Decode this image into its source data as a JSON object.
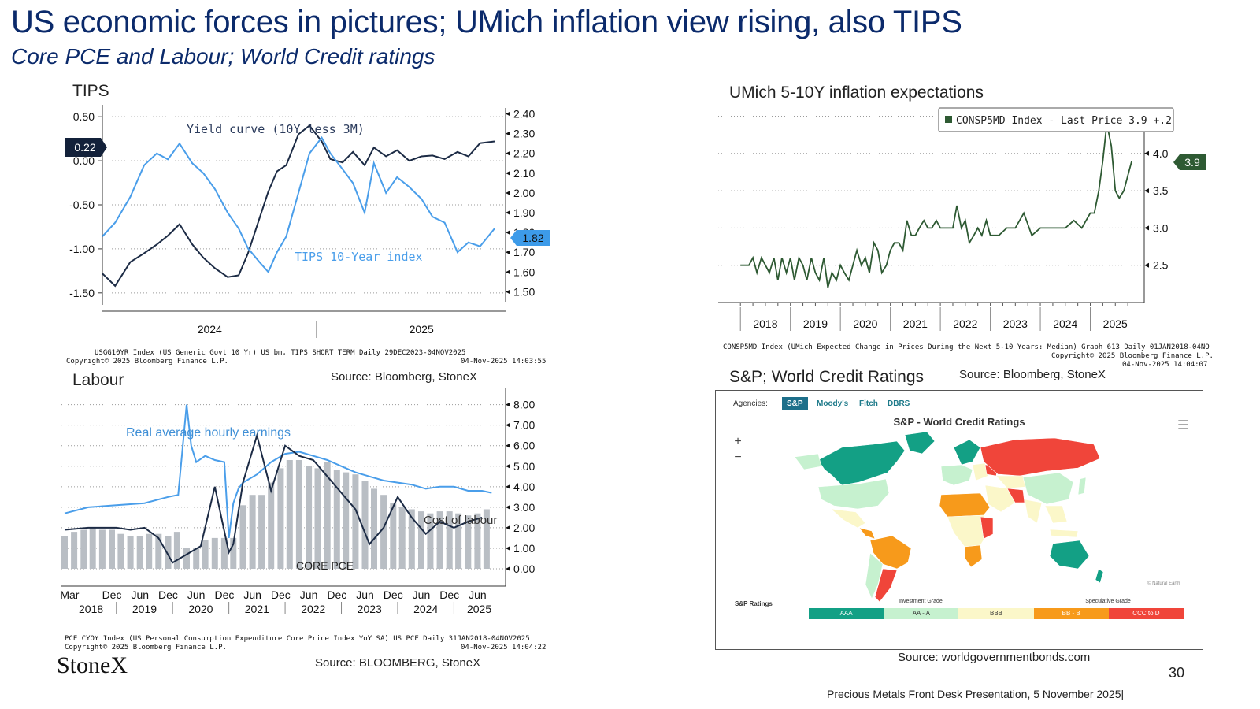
{
  "header": {
    "title": "US  economic forces in pictures; UMich inflation view rising, also TIPS",
    "subtitle": "Core PCE and Labour; World Credit ratings"
  },
  "tips": {
    "panel_title": "TIPS",
    "annotation_curve": "Yield curve (10Y less 3M)",
    "annotation_tips": "TIPS 10-Year index",
    "left_last": "0.22",
    "right_last": "1.82",
    "footnote1": "USGG10YR Index (US Generic Govt 10 Yr) US bm, TIPS SHORT TERM Daily 29DEC2023-04NOV2025",
    "footnote2": "Copyright© 2025 Bloomberg Finance L.P.",
    "footnote3": "04-Nov-2025 14:03:55",
    "source": "Source: Bloomberg, StoneX"
  },
  "umich": {
    "panel_title": "UMich 5-10Y inflation expectations",
    "legend": "CONSP5MD Index - Last Price 3.9  +.2",
    "last": "3.9",
    "footnote1": "CONSP5MD Index (UMich Expected Change in Prices During the Next 5-10 Years: Median) Graph 613 Daily 01JAN2018-04NO",
    "footnote2": "Copyright© 2025 Bloomberg Finance L.P.",
    "footnote3": "04-Nov-2025 14:04:07",
    "source": "Source: Bloomberg, StoneX"
  },
  "labour": {
    "panel_title": "Labour",
    "annotation_wages": "Real average hourly earnings",
    "annotation_cost": "Cost of labour",
    "annotation_pce": "CORE PCE",
    "footnote1": "PCE CYOY Index (US Personal Consumption Expenditure Core Price Index YoY SA) US PCE Daily 31JAN2018-04NOV2025",
    "footnote2": "Copyright© 2025 Bloomberg Finance L.P.",
    "footnote3": "04-Nov-2025 14:04:22",
    "source": "Source: BLOOMBERG, StoneX"
  },
  "credit": {
    "panel_title": "S&P; World Credit Ratings",
    "panel_source": "Source: Bloomberg, StoneX",
    "agencies_label": "Agencies:",
    "agencies": [
      "S&P",
      "Moody's",
      "Fitch",
      "DBRS"
    ],
    "map_title": "S&P - World Credit Ratings",
    "zoom_in": "+",
    "zoom_out": "−",
    "attribution": "© Natural Earth",
    "legend_label": "S&P Ratings",
    "investment_grade": "Investment Grade",
    "speculative_grade": "Speculative Grade",
    "legend_bins": [
      {
        "label": "AAA",
        "color": "#13a085"
      },
      {
        "label": "AA - A",
        "color": "#c6f1cf"
      },
      {
        "label": "BBB",
        "color": "#fbf7c9"
      },
      {
        "label": "BB - B",
        "color": "#f79a1b"
      },
      {
        "label": "CCC to D",
        "color": "#f0453a"
      }
    ],
    "source": "Source: worldgovernmentbonds.com"
  },
  "brand": {
    "logo": "StoneX",
    "page_number": "30",
    "footer": "Precious Metals Front Desk Presentation, 5 November 2025|"
  },
  "chart_data": [
    {
      "type": "line",
      "title": "TIPS",
      "x_labels": [
        "2024",
        "2025"
      ],
      "x_range": [
        "2023-12-29",
        "2025-11-04"
      ],
      "left_axis": {
        "ticks": [
          "0.50",
          "0.00",
          "-0.50",
          "-1.00",
          "-1.50"
        ],
        "ylim": [
          -1.6,
          0.6
        ]
      },
      "right_axis": {
        "ticks": [
          "2.40",
          "2.30",
          "2.20",
          "2.10",
          "2.00",
          "1.90",
          "1.80",
          "1.70",
          "1.60",
          "1.50"
        ],
        "ylim": [
          1.45,
          2.43
        ]
      },
      "series": [
        {
          "name": "Yield curve (10Y less 3M)",
          "axis": "left",
          "color": "#1c2b45",
          "x": [
            "2023-12-29",
            "2024-01-20",
            "2024-02-15",
            "2024-03-10",
            "2024-04-01",
            "2024-04-20",
            "2024-05-10",
            "2024-06-01",
            "2024-06-20",
            "2024-07-10",
            "2024-08-01",
            "2024-08-20",
            "2024-09-05",
            "2024-09-25",
            "2024-10-10",
            "2024-10-25",
            "2024-11-10",
            "2024-12-01",
            "2024-12-20",
            "2025-01-10",
            "2025-01-25",
            "2025-02-15",
            "2025-03-05",
            "2025-03-25",
            "2025-04-10",
            "2025-05-01",
            "2025-05-20",
            "2025-06-10",
            "2025-07-01",
            "2025-07-20",
            "2025-08-10",
            "2025-09-01",
            "2025-09-20",
            "2025-10-10",
            "2025-11-04"
          ],
          "y": [
            -1.28,
            -1.42,
            -1.15,
            -1.05,
            -0.95,
            -0.85,
            -0.72,
            -0.95,
            -1.1,
            -1.22,
            -1.32,
            -1.3,
            -1.05,
            -0.65,
            -0.35,
            -0.12,
            -0.05,
            0.3,
            0.4,
            0.22,
            0.02,
            -0.02,
            0.1,
            -0.05,
            0.15,
            0.05,
            0.12,
            0.0,
            0.05,
            0.06,
            0.02,
            0.1,
            0.05,
            0.2,
            0.22
          ]
        },
        {
          "name": "TIPS 10-Year index",
          "axis": "right",
          "color": "#4a9eea",
          "x": [
            "2023-12-29",
            "2024-01-20",
            "2024-02-15",
            "2024-03-10",
            "2024-04-01",
            "2024-04-20",
            "2024-05-10",
            "2024-06-01",
            "2024-06-20",
            "2024-07-10",
            "2024-08-01",
            "2024-08-20",
            "2024-09-05",
            "2024-09-25",
            "2024-10-10",
            "2024-10-25",
            "2024-11-10",
            "2024-12-01",
            "2024-12-20",
            "2025-01-10",
            "2025-01-25",
            "2025-02-15",
            "2025-03-05",
            "2025-03-25",
            "2025-04-10",
            "2025-05-01",
            "2025-05-20",
            "2025-06-10",
            "2025-07-01",
            "2025-07-20",
            "2025-08-10",
            "2025-09-01",
            "2025-09-20",
            "2025-10-10",
            "2025-11-04"
          ],
          "y": [
            1.78,
            1.85,
            1.98,
            2.14,
            2.2,
            2.17,
            2.25,
            2.15,
            2.1,
            2.02,
            1.9,
            1.82,
            1.72,
            1.65,
            1.6,
            1.7,
            1.78,
            2.0,
            2.2,
            2.28,
            2.2,
            2.12,
            2.05,
            1.9,
            2.15,
            2.0,
            2.08,
            2.03,
            1.97,
            1.88,
            1.85,
            1.7,
            1.75,
            1.73,
            1.82
          ]
        }
      ]
    },
    {
      "type": "line",
      "title": "UMich 5-10Y inflation expectations",
      "x_labels": [
        "2018",
        "2019",
        "2020",
        "2021",
        "2022",
        "2023",
        "2024",
        "2025"
      ],
      "y_ticks": [
        "4.5",
        "4.0",
        "3.5",
        "3.0",
        "2.5"
      ],
      "ylim": [
        2.0,
        4.6
      ],
      "series": [
        {
          "name": "CONSP5MD Index",
          "color": "#2e5a33",
          "x": [
            2018.0,
            2018.08,
            2018.17,
            2018.25,
            2018.33,
            2018.42,
            2018.5,
            2018.58,
            2018.67,
            2018.75,
            2018.83,
            2018.92,
            2019.0,
            2019.08,
            2019.17,
            2019.25,
            2019.33,
            2019.42,
            2019.5,
            2019.58,
            2019.67,
            2019.75,
            2019.83,
            2019.92,
            2020.0,
            2020.08,
            2020.17,
            2020.25,
            2020.33,
            2020.42,
            2020.5,
            2020.58,
            2020.67,
            2020.75,
            2020.83,
            2020.92,
            2021.0,
            2021.08,
            2021.17,
            2021.25,
            2021.33,
            2021.42,
            2021.5,
            2021.58,
            2021.67,
            2021.75,
            2021.83,
            2021.92,
            2022.0,
            2022.08,
            2022.17,
            2022.25,
            2022.33,
            2022.42,
            2022.5,
            2022.58,
            2022.67,
            2022.75,
            2022.83,
            2022.92,
            2023.0,
            2023.17,
            2023.33,
            2023.5,
            2023.67,
            2023.83,
            2024.0,
            2024.17,
            2024.33,
            2024.5,
            2024.67,
            2024.83,
            2025.0,
            2025.08,
            2025.17,
            2025.25,
            2025.33,
            2025.42,
            2025.5,
            2025.58,
            2025.67,
            2025.75,
            2025.83
          ],
          "y": [
            2.5,
            2.5,
            2.5,
            2.6,
            2.4,
            2.6,
            2.5,
            2.4,
            2.6,
            2.3,
            2.6,
            2.4,
            2.6,
            2.3,
            2.6,
            2.5,
            2.3,
            2.6,
            2.4,
            2.3,
            2.6,
            2.2,
            2.4,
            2.3,
            2.5,
            2.4,
            2.3,
            2.5,
            2.7,
            2.5,
            2.6,
            2.4,
            2.8,
            2.7,
            2.4,
            2.5,
            2.7,
            2.8,
            2.8,
            2.7,
            3.1,
            2.9,
            2.9,
            3.0,
            3.1,
            3.0,
            3.0,
            3.1,
            3.0,
            3.0,
            3.0,
            3.0,
            3.3,
            3.0,
            3.1,
            2.8,
            2.9,
            3.0,
            2.9,
            3.1,
            2.9,
            2.9,
            3.0,
            3.0,
            3.2,
            2.9,
            3.0,
            3.0,
            3.0,
            3.0,
            3.1,
            3.0,
            3.2,
            3.2,
            3.5,
            3.9,
            4.4,
            4.1,
            3.5,
            3.4,
            3.5,
            3.7,
            3.9
          ]
        }
      ]
    },
    {
      "type": "bar",
      "title": "Labour",
      "x_labels": [
        "Mar",
        "Dec",
        "Jun",
        "Dec",
        "Jun",
        "Dec",
        "Jun",
        "Dec",
        "Jun",
        "Dec",
        "Jun",
        "Dec",
        "Jun",
        "Dec",
        "Jun"
      ],
      "year_labels": [
        "2018",
        "2019",
        "2020",
        "2021",
        "2022",
        "2023",
        "2024",
        "2025"
      ],
      "y_ticks": [
        "8.00",
        "7.00",
        "6.00",
        "5.00",
        "4.00",
        "3.00",
        "2.00",
        "1.00",
        "0.00"
      ],
      "ylim": [
        0,
        8.6
      ],
      "x_range": [
        2018.08,
        2025.75
      ],
      "series": [
        {
          "name": "CORE PCE",
          "kind": "bar",
          "color": "#b9bec4",
          "x": [
            2018.08,
            2018.25,
            2018.42,
            2018.58,
            2018.75,
            2018.92,
            2019.08,
            2019.25,
            2019.42,
            2019.58,
            2019.75,
            2019.92,
            2020.08,
            2020.25,
            2020.42,
            2020.58,
            2020.75,
            2020.92,
            2021.08,
            2021.25,
            2021.42,
            2021.58,
            2021.75,
            2021.92,
            2022.08,
            2022.25,
            2022.42,
            2022.58,
            2022.75,
            2022.92,
            2023.08,
            2023.25,
            2023.42,
            2023.58,
            2023.75,
            2023.92,
            2024.08,
            2024.25,
            2024.42,
            2024.58,
            2024.75,
            2024.92,
            2025.08,
            2025.25,
            2025.42,
            2025.58
          ],
          "y": [
            1.6,
            1.8,
            1.9,
            2.0,
            1.9,
            1.9,
            1.7,
            1.6,
            1.6,
            1.7,
            1.7,
            1.6,
            1.8,
            1.0,
            1.0,
            1.4,
            1.5,
            1.5,
            1.5,
            3.1,
            3.6,
            3.6,
            4.2,
            4.9,
            5.3,
            5.3,
            5.0,
            4.9,
            5.2,
            4.8,
            4.7,
            4.6,
            4.3,
            3.9,
            3.6,
            3.2,
            3.0,
            2.9,
            2.8,
            2.7,
            2.8,
            2.8,
            2.7,
            2.6,
            2.7,
            2.9
          ]
        },
        {
          "name": "Real average hourly earnings",
          "kind": "line",
          "color": "#4a9eea",
          "x": [
            2018.08,
            2018.5,
            2019.0,
            2019.5,
            2019.92,
            2020.1,
            2020.25,
            2020.33,
            2020.42,
            2020.58,
            2020.75,
            2020.92,
            2021.0,
            2021.08,
            2021.17,
            2021.25,
            2021.5,
            2021.75,
            2022.0,
            2022.25,
            2022.5,
            2022.75,
            2023.0,
            2023.25,
            2023.5,
            2023.75,
            2024.0,
            2024.25,
            2024.5,
            2024.75,
            2025.0,
            2025.25,
            2025.5,
            2025.67
          ],
          "y": [
            2.7,
            3.0,
            3.1,
            3.2,
            3.5,
            3.6,
            8.0,
            6.0,
            5.2,
            5.5,
            5.3,
            5.2,
            1.5,
            3.2,
            3.9,
            4.2,
            4.6,
            5.2,
            5.6,
            5.7,
            5.5,
            5.3,
            5.0,
            4.7,
            4.5,
            4.3,
            4.2,
            4.1,
            3.9,
            4.0,
            4.0,
            3.8,
            3.8,
            3.7
          ]
        },
        {
          "name": "Cost of labour",
          "kind": "line",
          "color": "#1c2b45",
          "x": [
            2018.08,
            2018.5,
            2019.0,
            2019.25,
            2019.5,
            2019.75,
            2020.0,
            2020.25,
            2020.5,
            2020.75,
            2021.0,
            2021.08,
            2021.25,
            2021.5,
            2021.75,
            2022.0,
            2022.25,
            2022.5,
            2022.75,
            2023.0,
            2023.25,
            2023.5,
            2023.75,
            2024.0,
            2024.25,
            2024.5,
            2024.75,
            2025.0,
            2025.25,
            2025.5
          ],
          "y": [
            1.9,
            2.0,
            2.0,
            1.9,
            2.0,
            1.5,
            0.3,
            0.7,
            1.1,
            4.0,
            0.8,
            1.2,
            4.2,
            6.5,
            3.8,
            6.0,
            5.5,
            5.3,
            4.5,
            3.7,
            2.9,
            1.2,
            2.0,
            3.5,
            2.5,
            1.7,
            2.3,
            2.0,
            2.3,
            2.5
          ]
        }
      ]
    }
  ]
}
